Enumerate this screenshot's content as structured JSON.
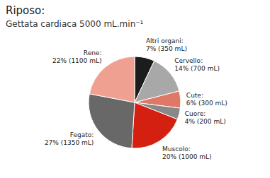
{
  "chart_data": {
    "type": "pie",
    "title": "Riposo:",
    "subtitle": "Gettata cardiaca 5000 mL.min⁻¹",
    "categories": [
      "Altri organi:\n7% (350 mL)",
      "Cervello:\n14% (700 mL)",
      "Cute:\n6% (300 mL)",
      "Cuore:\n4% (200 mL)",
      "Muscolo:\n20% (1000 mL)",
      "Fegato:\n27% (1350 mL)",
      "Rene:\n22% (1100 mL)"
    ],
    "values": [
      7,
      14,
      6,
      4,
      20,
      27,
      22
    ],
    "colors": [
      "#1c1c1c",
      "#a8a8a8",
      "#e07868",
      "#888888",
      "#d42010",
      "#686868",
      "#f0a090"
    ]
  }
}
